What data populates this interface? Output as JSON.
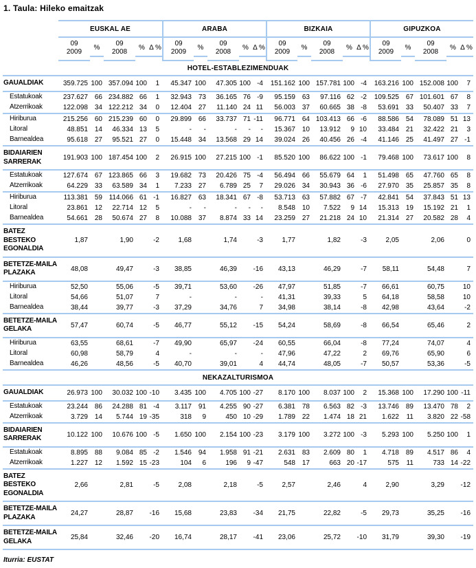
{
  "title": "1. Taula: Hileko emaitzak",
  "source": "Iturria: EUSTAT",
  "line_color": "#a6c9f0",
  "chart_data": {
    "type": "table",
    "title": "1. Taula: Hileko emaitzak",
    "region_groups": [
      "EUSKAL AE",
      "ARABA",
      "BIZKAIA",
      "GIPUZKOA"
    ],
    "sub_columns": [
      "09\n2009",
      "%",
      "09\n2008",
      "%",
      "Δ %"
    ],
    "sections": [
      {
        "heading": "HOTEL-ESTABLEZIMENDUAK",
        "rows": [
          {
            "label": "GAUALDIAK",
            "bold": true,
            "cells": [
              "359.725",
              "100",
              "357.094",
              "100",
              "1",
              "45.347",
              "100",
              "47.305",
              "100",
              "-4",
              "151.162",
              "100",
              "157.781",
              "100",
              "-4",
              "163.216",
              "100",
              "152.008",
              "100",
              "7"
            ]
          },
          {
            "label": "Estatukoak",
            "indent": true,
            "sep": true,
            "cells": [
              "237.627",
              "66",
              "234.882",
              "66",
              "1",
              "32.943",
              "73",
              "36.165",
              "76",
              "-9",
              "95.159",
              "63",
              "97.116",
              "62",
              "-2",
              "109.525",
              "67",
              "101.601",
              "67",
              "8"
            ]
          },
          {
            "label": "Atzerrikoak",
            "indent": true,
            "cells": [
              "122.098",
              "34",
              "122.212",
              "34",
              "0",
              "12.404",
              "27",
              "11.140",
              "24",
              "11",
              "56.003",
              "37",
              "60.665",
              "38",
              "-8",
              "53.691",
              "33",
              "50.407",
              "33",
              "7"
            ]
          },
          {
            "label": "Hiriburua",
            "indent": true,
            "sep": true,
            "cells": [
              "215.256",
              "60",
              "215.239",
              "60",
              "0",
              "29.899",
              "66",
              "33.737",
              "71",
              "-11",
              "96.771",
              "64",
              "103.413",
              "66",
              "-6",
              "88.586",
              "54",
              "78.089",
              "51",
              "13"
            ]
          },
          {
            "label": "Litoral",
            "indent": true,
            "cells": [
              "48.851",
              "14",
              "46.334",
              "13",
              "5",
              "-",
              "-",
              "-",
              "-",
              "-",
              "15.367",
              "10",
              "13.912",
              "9",
              "10",
              "33.484",
              "21",
              "32.422",
              "21",
              "3"
            ]
          },
          {
            "label": "Barnealdea",
            "indent": true,
            "cells": [
              "95.618",
              "27",
              "95.521",
              "27",
              "0",
              "15.448",
              "34",
              "13.568",
              "29",
              "14",
              "39.024",
              "26",
              "40.456",
              "26",
              "-4",
              "41.146",
              "25",
              "41.497",
              "27",
              "-1"
            ]
          },
          {
            "label": "BIDAIARIEN\nSARRERAK",
            "bold": true,
            "sep": true,
            "cells": [
              "191.903",
              "100",
              "187.454",
              "100",
              "2",
              "26.915",
              "100",
              "27.215",
              "100",
              "-1",
              "85.520",
              "100",
              "86.622",
              "100",
              "-1",
              "79.468",
              "100",
              "73.617",
              "100",
              "8"
            ]
          },
          {
            "label": "Estatukoak",
            "indent": true,
            "sep": true,
            "cells": [
              "127.674",
              "67",
              "123.865",
              "66",
              "3",
              "19.682",
              "73",
              "20.426",
              "75",
              "-4",
              "56.494",
              "66",
              "55.679",
              "64",
              "1",
              "51.498",
              "65",
              "47.760",
              "65",
              "8"
            ]
          },
          {
            "label": "Atzerrikoak",
            "indent": true,
            "cells": [
              "64.229",
              "33",
              "63.589",
              "34",
              "1",
              "7.233",
              "27",
              "6.789",
              "25",
              "7",
              "29.026",
              "34",
              "30.943",
              "36",
              "-6",
              "27.970",
              "35",
              "25.857",
              "35",
              "8"
            ]
          },
          {
            "label": "Hiriburua",
            "indent": true,
            "sep": true,
            "cells": [
              "113.381",
              "59",
              "114.066",
              "61",
              "-1",
              "16.827",
              "63",
              "18.341",
              "67",
              "-8",
              "53.713",
              "63",
              "57.882",
              "67",
              "-7",
              "42.841",
              "54",
              "37.843",
              "51",
              "13"
            ]
          },
          {
            "label": "Litoral",
            "indent": true,
            "cells": [
              "23.861",
              "12",
              "22.714",
              "12",
              "5",
              "-",
              "-",
              "-",
              "-",
              "-",
              "8.548",
              "10",
              "7.522",
              "9",
              "14",
              "15.313",
              "19",
              "15.192",
              "21",
              "1"
            ]
          },
          {
            "label": "Barnealdea",
            "indent": true,
            "cells": [
              "54.661",
              "28",
              "50.674",
              "27",
              "8",
              "10.088",
              "37",
              "8.874",
              "33",
              "14",
              "23.259",
              "27",
              "21.218",
              "24",
              "10",
              "21.314",
              "27",
              "20.582",
              "28",
              "4"
            ]
          },
          {
            "label": "BATEZ BESTEKO\nEGONALDIA",
            "bold": true,
            "sep": true,
            "cells": [
              "1,87",
              "",
              "1,90",
              "",
              "-2",
              "1,68",
              "",
              "1,74",
              "",
              "-3",
              "1,77",
              "",
              "1,82",
              "",
              "-3",
              "2,05",
              "",
              "2,06",
              "",
              "0"
            ]
          },
          {
            "label": "BETETZE-MAILA\nPLAZAKA",
            "bold": true,
            "sep": true,
            "cells": [
              "48,08",
              "",
              "49,47",
              "",
              "-3",
              "38,85",
              "",
              "46,39",
              "",
              "-16",
              "43,13",
              "",
              "46,29",
              "",
              "-7",
              "58,11",
              "",
              "54,48",
              "",
              "7"
            ]
          },
          {
            "label": "Hiriburua",
            "indent": true,
            "sep": true,
            "cells": [
              "52,50",
              "",
              "55,06",
              "",
              "-5",
              "39,71",
              "",
              "53,60",
              "",
              "-26",
              "47,97",
              "",
              "51,85",
              "",
              "-7",
              "66,61",
              "",
              "60,75",
              "",
              "10"
            ]
          },
          {
            "label": "Litoral",
            "indent": true,
            "cells": [
              "54,66",
              "",
              "51,07",
              "",
              "7",
              "-",
              "",
              "-",
              "",
              "-",
              "41,31",
              "",
              "39,33",
              "",
              "5",
              "64,18",
              "",
              "58,58",
              "",
              "10"
            ]
          },
          {
            "label": "Barnealdea",
            "indent": true,
            "cells": [
              "38,44",
              "",
              "39,77",
              "",
              "-3",
              "37,29",
              "",
              "34,76",
              "",
              "7",
              "34,98",
              "",
              "38,14",
              "",
              "-8",
              "42,98",
              "",
              "43,64",
              "",
              "-2"
            ]
          },
          {
            "label": "BETETZE-MAILA\nGELAKA",
            "bold": true,
            "sep": true,
            "cells": [
              "57,47",
              "",
              "60,74",
              "",
              "-5",
              "46,77",
              "",
              "55,12",
              "",
              "-15",
              "54,24",
              "",
              "58,69",
              "",
              "-8",
              "66,54",
              "",
              "65,46",
              "",
              "2"
            ]
          },
          {
            "label": "Hiriburua",
            "indent": true,
            "sep": true,
            "cells": [
              "63,55",
              "",
              "68,61",
              "",
              "-7",
              "49,90",
              "",
              "65,97",
              "",
              "-24",
              "60,55",
              "",
              "66,04",
              "",
              "-8",
              "77,24",
              "",
              "74,07",
              "",
              "4"
            ]
          },
          {
            "label": "Litoral",
            "indent": true,
            "cells": [
              "60,98",
              "",
              "58,79",
              "",
              "4",
              "-",
              "",
              "-",
              "",
              "-",
              "47,96",
              "",
              "47,22",
              "",
              "2",
              "69,76",
              "",
              "65,90",
              "",
              "6"
            ]
          },
          {
            "label": "Barnealdea",
            "indent": true,
            "cells": [
              "46,26",
              "",
              "48,56",
              "",
              "-5",
              "40,70",
              "",
              "39,01",
              "",
              "4",
              "44,74",
              "",
              "48,05",
              "",
              "-7",
              "50,57",
              "",
              "53,36",
              "",
              "-5"
            ]
          }
        ]
      },
      {
        "heading": "NEKAZALTURISMOA",
        "rows": [
          {
            "label": "GAUALDIAK",
            "bold": true,
            "cells": [
              "26.973",
              "100",
              "30.032",
              "100",
              "-10",
              "3.435",
              "100",
              "4.705",
              "100",
              "-27",
              "8.170",
              "100",
              "8.037",
              "100",
              "2",
              "15.368",
              "100",
              "17.290",
              "100",
              "-11"
            ]
          },
          {
            "label": "Estatukoak",
            "indent": true,
            "sep": true,
            "cells": [
              "23.244",
              "86",
              "24.288",
              "81",
              "-4",
              "3.117",
              "91",
              "4.255",
              "90",
              "-27",
              "6.381",
              "78",
              "6.563",
              "82",
              "-3",
              "13.746",
              "89",
              "13.470",
              "78",
              "2"
            ]
          },
          {
            "label": "Atzerrikoak",
            "indent": true,
            "cells": [
              "3.729",
              "14",
              "5.744",
              "19",
              "-35",
              "318",
              "9",
              "450",
              "10",
              "-29",
              "1.789",
              "22",
              "1.474",
              "18",
              "21",
              "1.622",
              "11",
              "3.820",
              "22",
              "-58"
            ]
          },
          {
            "label": "BIDAIARIEN\nSARRERAK",
            "bold": true,
            "sep": true,
            "cells": [
              "10.122",
              "100",
              "10.676",
              "100",
              "-5",
              "1.650",
              "100",
              "2.154",
              "100",
              "-23",
              "3.179",
              "100",
              "3.272",
              "100",
              "-3",
              "5.293",
              "100",
              "5.250",
              "100",
              "1"
            ]
          },
          {
            "label": "Estatukoak",
            "indent": true,
            "sep": true,
            "cells": [
              "8.895",
              "88",
              "9.084",
              "85",
              "-2",
              "1.546",
              "94",
              "1.958",
              "91",
              "-21",
              "2.631",
              "83",
              "2.609",
              "80",
              "1",
              "4.718",
              "89",
              "4.517",
              "86",
              "4"
            ]
          },
          {
            "label": "Atzerrikoak",
            "indent": true,
            "cells": [
              "1.227",
              "12",
              "1.592",
              "15",
              "-23",
              "104",
              "6",
              "196",
              "9",
              "-47",
              "548",
              "17",
              "663",
              "20",
              "-17",
              "575",
              "11",
              "733",
              "14",
              "-22"
            ]
          },
          {
            "label": "BATEZ BESTEKO\nEGONALDIA",
            "bold": true,
            "sep": true,
            "cells": [
              "2,66",
              "",
              "2,81",
              "",
              "-5",
              "2,08",
              "",
              "2,18",
              "",
              "-5",
              "2,57",
              "",
              "2,46",
              "",
              "4",
              "2,90",
              "",
              "3,29",
              "",
              "-12"
            ]
          },
          {
            "label": "BETETZE-MAILA\nPLAZAKA",
            "bold": true,
            "sep": true,
            "cells": [
              "24,27",
              "",
              "28,87",
              "",
              "-16",
              "15,68",
              "",
              "23,83",
              "",
              "-34",
              "21,75",
              "",
              "22,82",
              "",
              "-5",
              "29,73",
              "",
              "35,25",
              "",
              "-16"
            ]
          },
          {
            "label": "BETETZE-MAILA\nGELAKA",
            "bold": true,
            "sep": true,
            "cells": [
              "25,84",
              "",
              "32,46",
              "",
              "-20",
              "16,74",
              "",
              "28,17",
              "",
              "-41",
              "23,06",
              "",
              "25,72",
              "",
              "-10",
              "31,79",
              "",
              "39,30",
              "",
              "-19"
            ]
          }
        ]
      }
    ]
  }
}
